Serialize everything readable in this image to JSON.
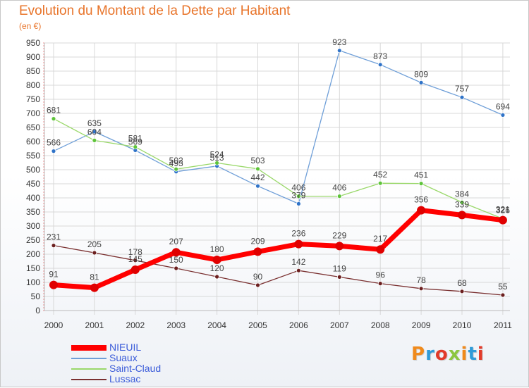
{
  "header": {
    "title": "Evolution du Montant de la Dette par Habitant",
    "unit": "(en €)"
  },
  "logo": {
    "text": "Proxiti",
    "letter_colors": [
      "#f08a1c",
      "#2f9bd8",
      "#e23b2a",
      "#8cc63f",
      "#f08a1c",
      "#2f9bd8",
      "#e23b2a"
    ]
  },
  "colors": {
    "title": "#e8742a",
    "legend_text": "#3a5bd9",
    "grid": "#d8d8d8",
    "axis_tick": "#e05050"
  },
  "chart_data": {
    "type": "line",
    "title": "Evolution du Montant de la Dette par Habitant",
    "ylabel": "(en €)",
    "xlabel": "",
    "ylim": [
      0,
      950
    ],
    "yticks": [
      0,
      50,
      100,
      150,
      200,
      250,
      300,
      350,
      400,
      450,
      500,
      550,
      600,
      650,
      700,
      750,
      800,
      850,
      900,
      950
    ],
    "grid": true,
    "legend_position": "bottom-left",
    "x": [
      "2000",
      "2001",
      "2002",
      "2003",
      "2004",
      "2005",
      "2006",
      "2007",
      "2008",
      "2009",
      "2010",
      "2011"
    ],
    "series": [
      {
        "name": "NIEUIL",
        "color": "#ff0000",
        "marker_color": "#e00000",
        "style": "thick",
        "values": [
          91,
          81,
          145,
          207,
          180,
          209,
          236,
          229,
          217,
          356,
          339,
          321
        ]
      },
      {
        "name": "Suaux",
        "color": "#6f9fd8",
        "marker_color": "#2f73c8",
        "style": "thin",
        "values": [
          566,
          635,
          569,
          493,
          513,
          442,
          379,
          923,
          873,
          809,
          757,
          694
        ]
      },
      {
        "name": "Saint-Claud",
        "color": "#9ad86a",
        "marker_color": "#5ec43a",
        "style": "thin",
        "values": [
          681,
          604,
          581,
          502,
          524,
          503,
          406,
          406,
          452,
          451,
          384,
          326
        ]
      },
      {
        "name": "Lussac",
        "color": "#7a3030",
        "marker_color": "#6b1f1f",
        "style": "thin",
        "values": [
          231,
          205,
          178,
          150,
          120,
          90,
          142,
          119,
          96,
          78,
          68,
          55
        ]
      }
    ]
  }
}
